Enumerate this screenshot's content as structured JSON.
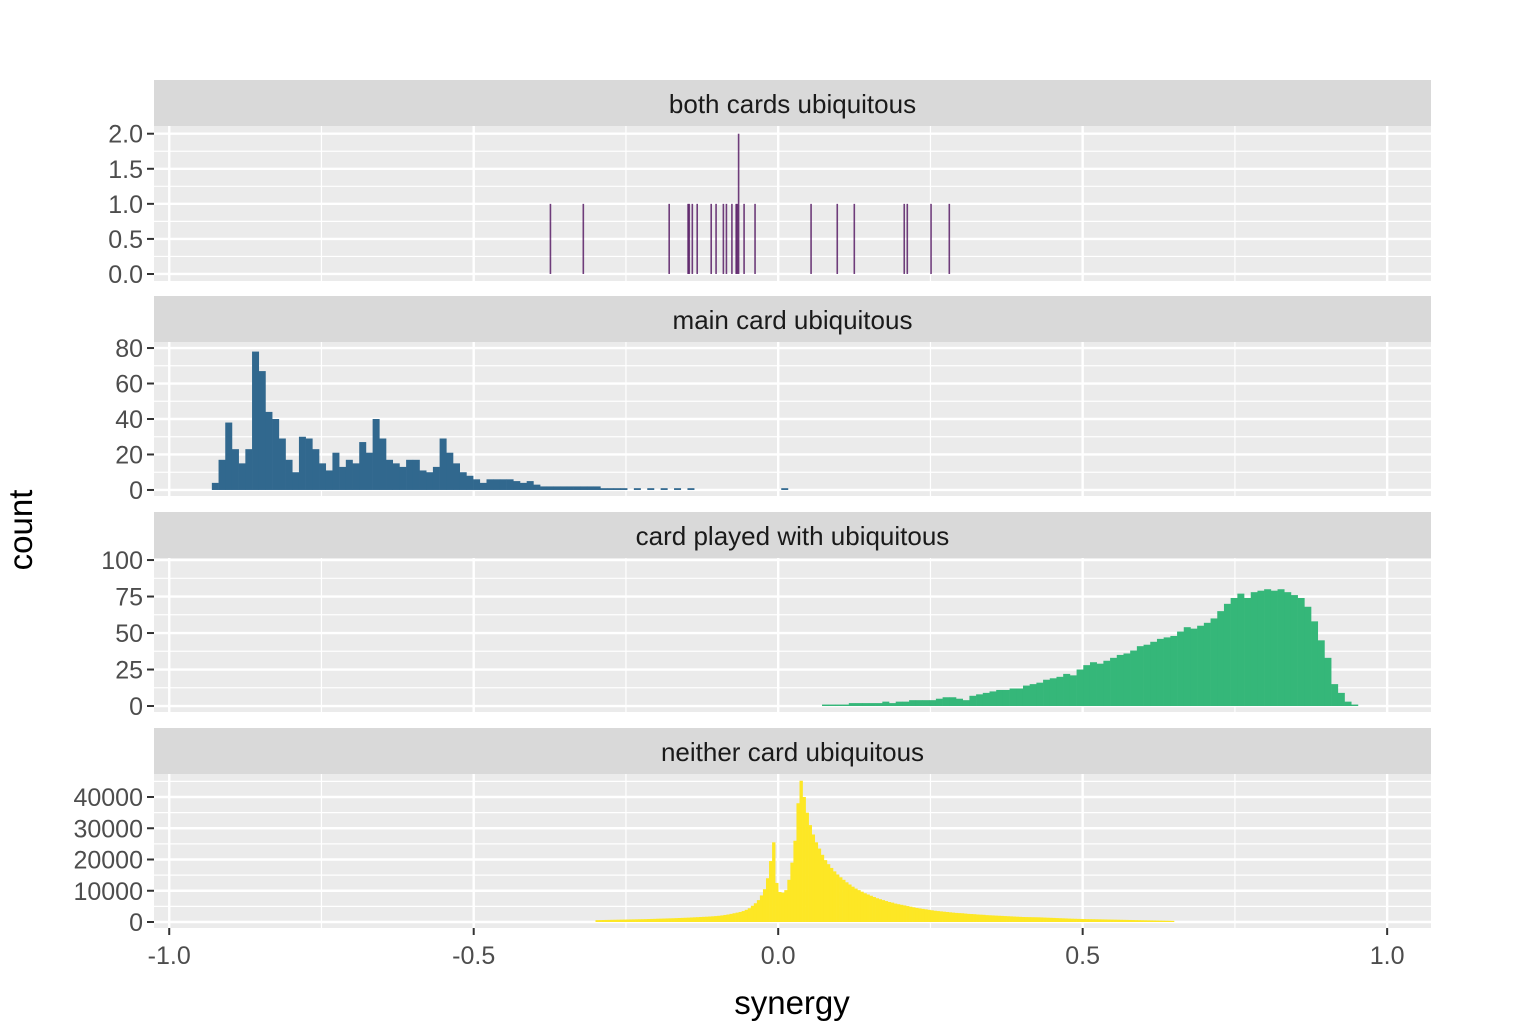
{
  "chart_data": {
    "type": "bar",
    "subtype": "faceted-histogram",
    "xlabel": "synergy",
    "ylabel": "count",
    "xlim": [
      -1.025,
      1.072
    ],
    "x_ticks": [
      -1.0,
      -0.5,
      0.0,
      0.5,
      1.0
    ],
    "x_tick_labels": [
      "-1.0",
      "-0.5",
      "0.0",
      "0.5",
      "1.0"
    ],
    "x_minor_breaks": [
      -0.75,
      -0.25,
      0.25,
      0.75
    ],
    "grid": true,
    "background": "#EBEBEB",
    "strip_color": "#D9D9D9",
    "panels": [
      {
        "strip": "both cards ubiquitous",
        "color": "#440154",
        "ylim": [
          -0.1,
          2.11
        ],
        "y_ticks": [
          0,
          0.5,
          1,
          1.5,
          2
        ],
        "y_tick_labels": [
          "0.0",
          "0.5",
          "1.0",
          "1.5",
          "2.0"
        ],
        "binwidth": 0.002,
        "points": [
          {
            "x": -0.374,
            "count": 1
          },
          {
            "x": -0.32,
            "count": 1
          },
          {
            "x": -0.179,
            "count": 1
          },
          {
            "x": -0.148,
            "count": 1
          },
          {
            "x": -0.146,
            "count": 1
          },
          {
            "x": -0.141,
            "count": 1
          },
          {
            "x": -0.133,
            "count": 1
          },
          {
            "x": -0.11,
            "count": 1
          },
          {
            "x": -0.102,
            "count": 1
          },
          {
            "x": -0.09,
            "count": 1
          },
          {
            "x": -0.085,
            "count": 1
          },
          {
            "x": -0.076,
            "count": 1
          },
          {
            "x": -0.069,
            "count": 1
          },
          {
            "x": -0.067,
            "count": 1
          },
          {
            "x": -0.065,
            "count": 2
          },
          {
            "x": -0.056,
            "count": 1
          },
          {
            "x": -0.038,
            "count": 1
          },
          {
            "x": 0.054,
            "count": 1
          },
          {
            "x": 0.097,
            "count": 1
          },
          {
            "x": 0.125,
            "count": 1
          },
          {
            "x": 0.207,
            "count": 1
          },
          {
            "x": 0.212,
            "count": 1
          },
          {
            "x": 0.251,
            "count": 1
          },
          {
            "x": 0.281,
            "count": 1
          }
        ]
      },
      {
        "strip": "main card ubiquitous",
        "color": "#31688E",
        "ylim": [
          -3.4,
          83.4
        ],
        "y_ticks": [
          0,
          20,
          40,
          60,
          80
        ],
        "y_tick_labels": [
          "0",
          "20",
          "40",
          "60",
          "80"
        ],
        "bin_start": -0.93,
        "binwidth": 0.011,
        "counts": [
          4,
          17,
          38,
          23,
          15,
          23,
          78,
          67,
          44,
          40,
          29,
          17,
          10,
          30,
          29,
          23,
          15,
          11,
          21,
          13,
          17,
          15,
          27,
          21,
          40,
          29,
          17,
          15,
          13,
          17,
          17,
          11,
          10,
          13,
          29,
          21,
          15,
          10,
          8,
          6,
          4,
          6,
          6,
          6,
          6,
          5,
          4,
          5,
          3,
          2,
          2,
          2,
          2,
          2,
          2,
          2,
          2,
          2,
          1,
          1,
          1,
          1,
          0,
          1,
          0,
          1,
          0,
          1,
          0,
          1,
          0,
          1,
          0,
          0,
          0,
          0,
          0,
          0,
          0,
          0,
          0,
          0,
          0,
          0,
          0,
          1
        ]
      },
      {
        "strip": "card played with ubiquitous",
        "color": "#35B779",
        "ylim": [
          -4.1,
          101.4
        ],
        "y_ticks": [
          0,
          25,
          50,
          75,
          100
        ],
        "y_tick_labels": [
          "0",
          "25",
          "50",
          "75",
          "100"
        ],
        "bin_start": 0.05,
        "binwidth": 0.011,
        "counts": [
          0,
          0,
          1,
          1,
          1,
          1,
          2,
          2,
          2,
          2,
          2,
          3,
          2,
          3,
          3,
          4,
          4,
          4,
          4,
          5,
          6,
          6,
          5,
          4,
          7,
          8,
          9,
          10,
          11,
          11,
          12,
          12,
          14,
          15,
          16,
          18,
          19,
          20,
          22,
          21,
          25,
          28,
          30,
          29,
          31,
          33,
          35,
          36,
          38,
          41,
          42,
          44,
          46,
          47,
          48,
          51,
          54,
          53,
          55,
          57,
          60,
          65,
          70,
          74,
          77,
          74,
          78,
          79,
          80,
          79,
          80,
          78,
          76,
          74,
          68,
          58,
          45,
          33,
          15,
          9,
          3,
          1
        ]
      },
      {
        "strip": "neither card ubiquitous",
        "color": "#FDE725",
        "ylim": [
          -1920,
          47360
        ],
        "y_ticks": [
          0,
          10000,
          20000,
          30000,
          40000
        ],
        "y_tick_labels": [
          "0",
          "10000",
          "20000",
          "30000",
          "40000"
        ],
        "bin_start": -0.3,
        "binwidth": 0.005,
        "counts": [
          600,
          620,
          640,
          660,
          680,
          700,
          720,
          740,
          760,
          780,
          800,
          820,
          840,
          860,
          880,
          900,
          920,
          950,
          980,
          1010,
          1050,
          1080,
          1110,
          1140,
          1170,
          1200,
          1240,
          1280,
          1320,
          1360,
          1400,
          1450,
          1500,
          1550,
          1600,
          1650,
          1700,
          1760,
          1820,
          1900,
          1980,
          2100,
          2250,
          2400,
          2600,
          2800,
          3000,
          3200,
          3500,
          3900,
          4400,
          5200,
          6000,
          7000,
          8500,
          10500,
          14000,
          19500,
          25500,
          12500,
          9600,
          9400,
          10200,
          13500,
          19000,
          26000,
          38000,
          45200,
          40000,
          35000,
          31000,
          28000,
          25500,
          23500,
          21500,
          19800,
          18500,
          17300,
          16200,
          15200,
          14300,
          13500,
          12700,
          12000,
          11300,
          10700,
          10200,
          9700,
          9200,
          8800,
          8400,
          8000,
          7600,
          7300,
          7000,
          6700,
          6400,
          6200,
          5900,
          5700,
          5500,
          5300,
          5100,
          4900,
          4700,
          4500,
          4350,
          4200,
          4050,
          3900,
          3750,
          3600,
          3500,
          3400,
          3300,
          3200,
          3100,
          3000,
          2900,
          2850,
          2800,
          2700,
          2600,
          2550,
          2500,
          2400,
          2350,
          2300,
          2200,
          2150,
          2100,
          2050,
          2000,
          1950,
          1900,
          1850,
          1800,
          1750,
          1700,
          1650,
          1600,
          1580,
          1560,
          1540,
          1520,
          1500,
          1460,
          1420,
          1380,
          1340,
          1300,
          1260,
          1220,
          1180,
          1140,
          1100,
          1060,
          1030,
          1000,
          970,
          950,
          930,
          910,
          890,
          870,
          850,
          830,
          810,
          790,
          770,
          750,
          730,
          710,
          690,
          670,
          650,
          630,
          610,
          590,
          570,
          550,
          530,
          510,
          490,
          470,
          450,
          430,
          410,
          390,
          370
        ]
      }
    ]
  }
}
